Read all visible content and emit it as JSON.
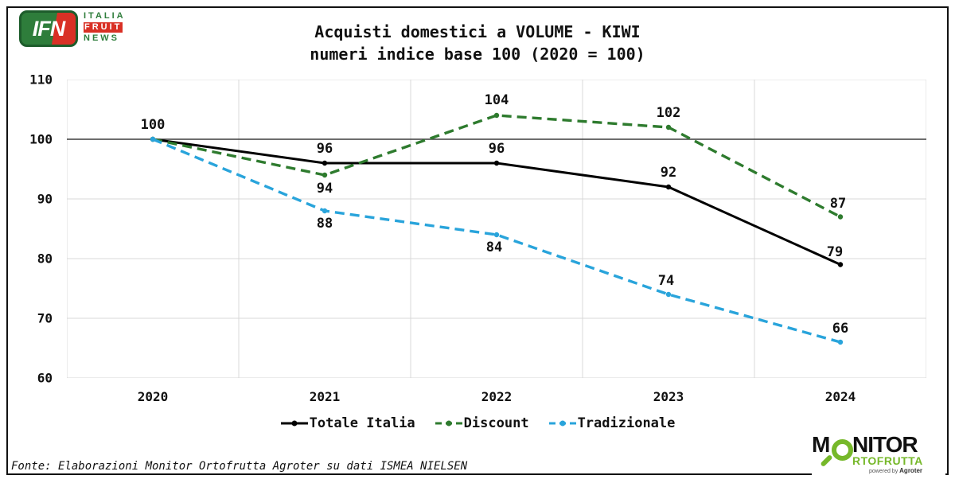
{
  "branding": {
    "ifn": {
      "acronym": "IFN",
      "word1": "ITALIA",
      "word2": "FRUIT",
      "word3": "NEWS",
      "green": "#2e7d3b",
      "red": "#d93025"
    },
    "monitor": {
      "line1_prefix": "M",
      "line1_suffix": "NITOR",
      "line2": "RTOFRUTTA",
      "powered_by": "powered by",
      "agroter": "Agroter",
      "green": "#76b82a"
    }
  },
  "title": {
    "line1": "Acquisti domestici a VOLUME - KIWI",
    "line2": "numeri indice base 100 (2020 = 100)"
  },
  "source": "Fonte: Elaborazioni Monitor Ortofrutta Agroter su dati ISMEA NIELSEN",
  "chart_data": {
    "type": "line",
    "categories": [
      "2020",
      "2021",
      "2022",
      "2023",
      "2024"
    ],
    "series": [
      {
        "name": "Totale Italia",
        "values": [
          100,
          96,
          96,
          92,
          79
        ],
        "color": "#000000",
        "dash": "solid"
      },
      {
        "name": "Discount",
        "values": [
          100,
          94,
          104,
          102,
          87
        ],
        "color": "#2e7b2e",
        "dash": "dashed"
      },
      {
        "name": "Tradizionale",
        "values": [
          100,
          88,
          84,
          74,
          66
        ],
        "color": "#29a4db",
        "dash": "dashed"
      }
    ],
    "ylim": [
      60,
      110
    ],
    "yticks": [
      60,
      70,
      80,
      90,
      100,
      110
    ],
    "baseline": 100,
    "grid": true,
    "legend_position": "bottom",
    "colors": {
      "grid": "#d9d9d9",
      "baseline": "#3d3d3d"
    }
  }
}
